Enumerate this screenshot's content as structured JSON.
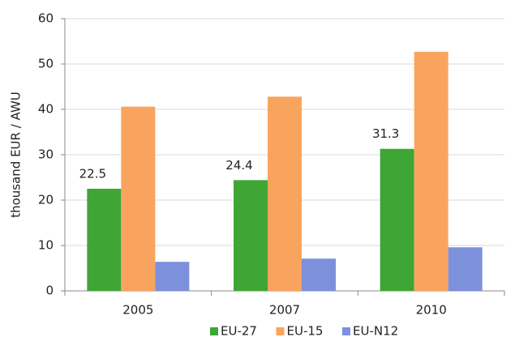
{
  "chart_data": {
    "type": "bar",
    "y_axis_label": "thousand EUR / AWU",
    "categories": [
      "2005",
      "2007",
      "2010"
    ],
    "series": [
      {
        "name": "EU-27",
        "color": "#3fa535",
        "values": [
          22.5,
          24.4,
          31.3
        ],
        "show_labels": true
      },
      {
        "name": "EU-15",
        "color": "#f9a45e",
        "values": [
          40.6,
          42.8,
          52.7
        ],
        "show_labels": false
      },
      {
        "name": "EU-N12",
        "color": "#7d90dc",
        "values": [
          6.4,
          7.1,
          9.6
        ],
        "show_labels": false
      }
    ],
    "ylim": [
      0,
      60
    ],
    "yticks": [
      0,
      10,
      20,
      30,
      40,
      50,
      60
    ],
    "grid": true,
    "legend": "bottom"
  }
}
